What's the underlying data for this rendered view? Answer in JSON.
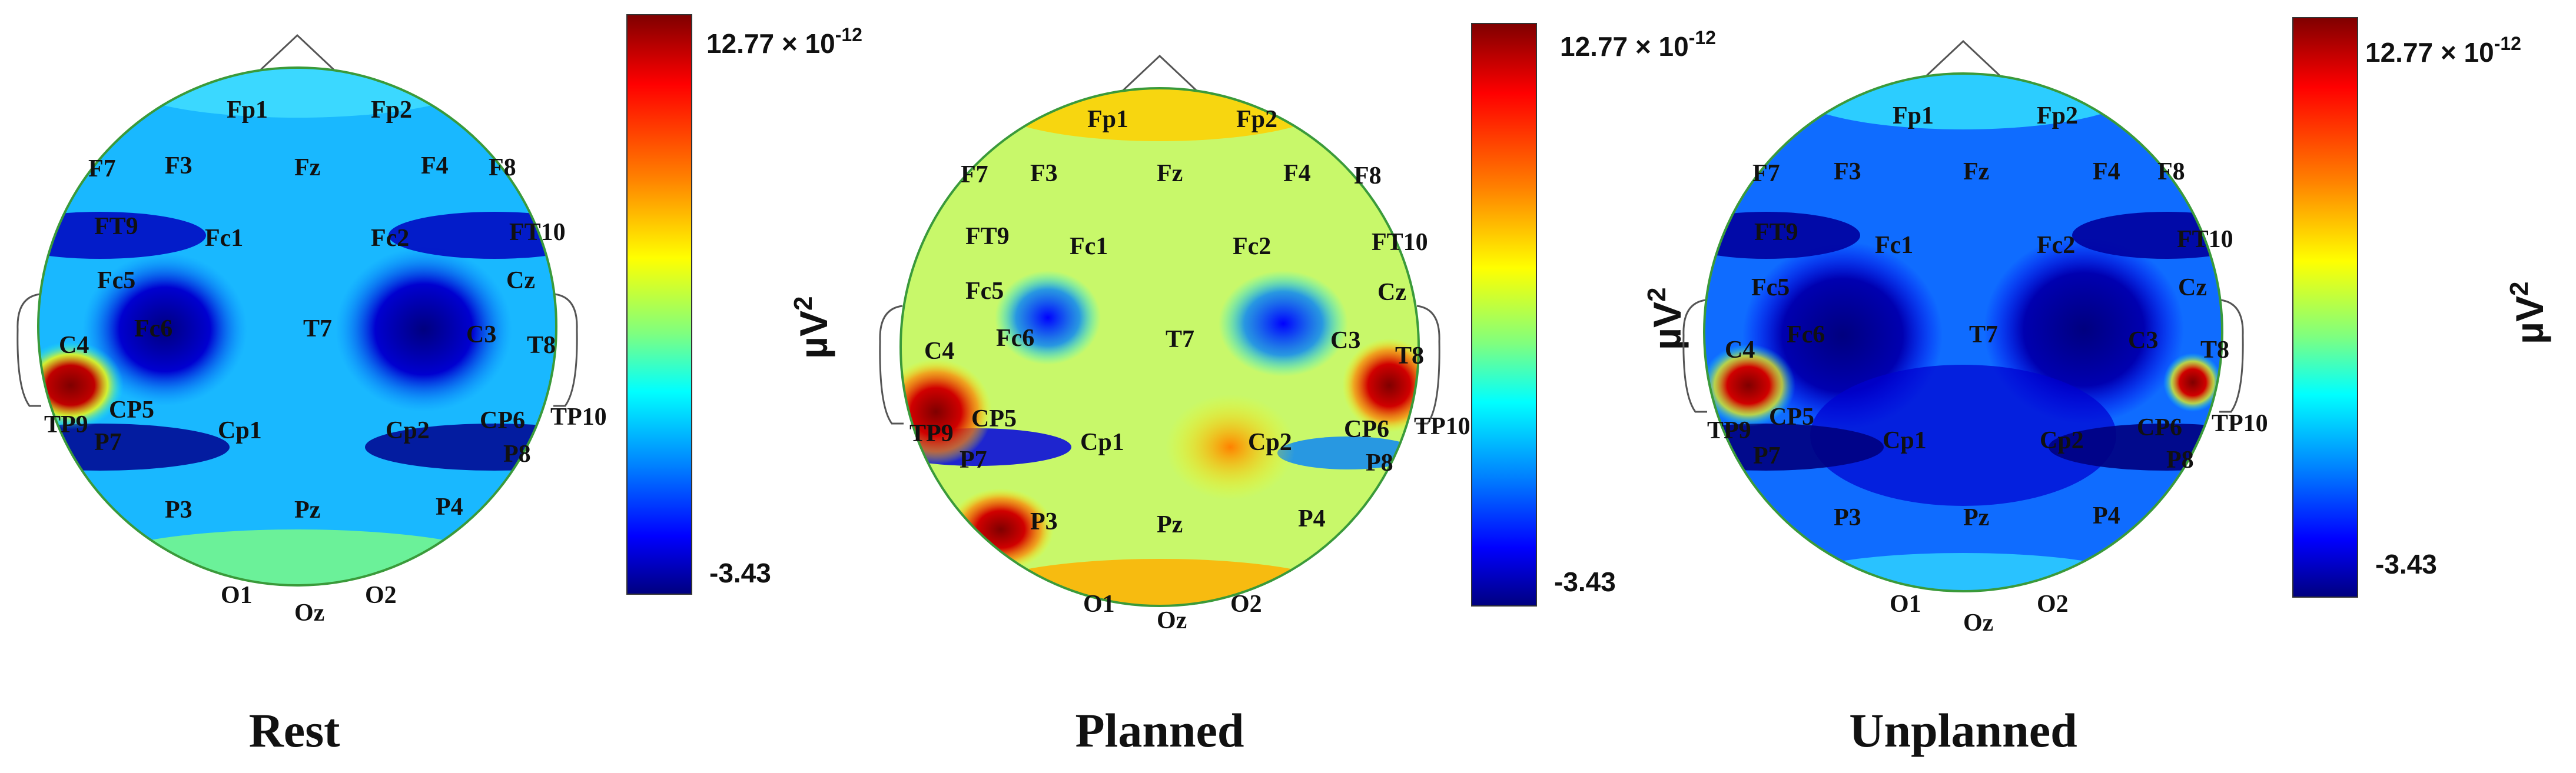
{
  "colors": {
    "jet": [
      "#00007f",
      "#0000ff",
      "#007fff",
      "#00ffff",
      "#7fff7f",
      "#ffff00",
      "#ff7f00",
      "#ff0000",
      "#7f0000"
    ],
    "head_outline": "#555555",
    "label": "#111111"
  },
  "colorbar": {
    "max_label": "12.77 × 10",
    "max_exp": "-12",
    "min_label": "-3.43",
    "unit": "µV",
    "unit_exp": "2"
  },
  "panels": [
    {
      "id": "rest",
      "title": "Rest"
    },
    {
      "id": "planned",
      "title": "Planned"
    },
    {
      "id": "unplanned",
      "title": "Unplanned"
    }
  ],
  "electrodes": [
    {
      "name": "Fp1"
    },
    {
      "name": "Fp2"
    },
    {
      "name": "F7"
    },
    {
      "name": "F3"
    },
    {
      "name": "Fz"
    },
    {
      "name": "F4"
    },
    {
      "name": "F8"
    },
    {
      "name": "FT9"
    },
    {
      "name": "Fc1"
    },
    {
      "name": "Fc2"
    },
    {
      "name": "FT10"
    },
    {
      "name": "Fc5"
    },
    {
      "name": "Fc6"
    },
    {
      "name": "T7"
    },
    {
      "name": "C3"
    },
    {
      "name": "Cz"
    },
    {
      "name": "C4"
    },
    {
      "name": "T8"
    },
    {
      "name": "CP5"
    },
    {
      "name": "TP9"
    },
    {
      "name": "Cp1"
    },
    {
      "name": "Cp2"
    },
    {
      "name": "CP6"
    },
    {
      "name": "TP10"
    },
    {
      "name": "P7"
    },
    {
      "name": "P8"
    },
    {
      "name": "P3"
    },
    {
      "name": "Pz"
    },
    {
      "name": "P4"
    },
    {
      "name": "O1"
    },
    {
      "name": "Oz"
    },
    {
      "name": "O2"
    }
  ]
}
